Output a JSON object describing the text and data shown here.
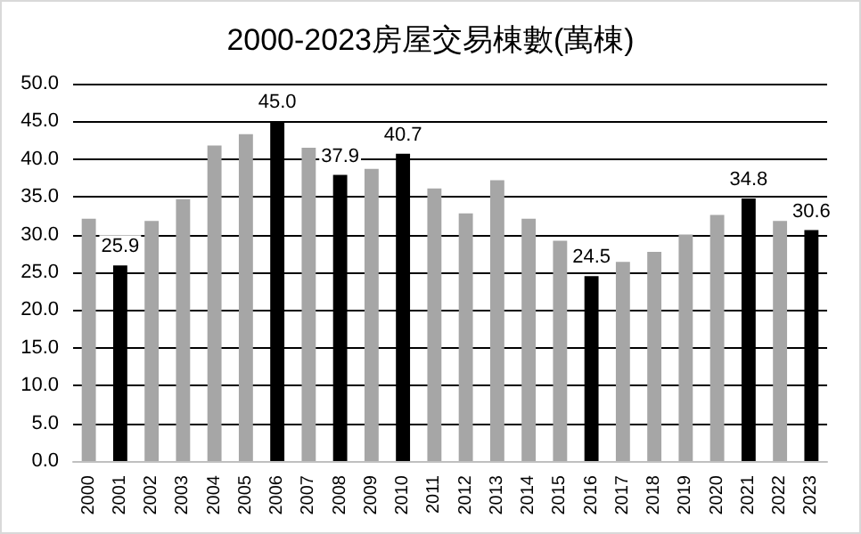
{
  "chart_data": {
    "type": "bar",
    "title": "2000-2023房屋交易棟數(萬棟)",
    "categories": [
      "2000",
      "2001",
      "2002",
      "2003",
      "2004",
      "2005",
      "2006",
      "2007",
      "2008",
      "2009",
      "2010",
      "2011",
      "2012",
      "2013",
      "2014",
      "2015",
      "2016",
      "2017",
      "2018",
      "2019",
      "2020",
      "2021",
      "2022",
      "2023"
    ],
    "values": [
      32.1,
      25.9,
      31.8,
      34.7,
      41.8,
      43.3,
      45.0,
      41.5,
      37.9,
      38.7,
      40.7,
      36.1,
      32.8,
      37.2,
      32.1,
      29.2,
      24.5,
      26.4,
      27.7,
      30.0,
      32.6,
      34.8,
      31.8,
      30.6
    ],
    "colors": [
      "#a6a6a6",
      "#000000",
      "#a6a6a6",
      "#a6a6a6",
      "#a6a6a6",
      "#a6a6a6",
      "#000000",
      "#a6a6a6",
      "#000000",
      "#a6a6a6",
      "#000000",
      "#a6a6a6",
      "#a6a6a6",
      "#a6a6a6",
      "#a6a6a6",
      "#a6a6a6",
      "#000000",
      "#a6a6a6",
      "#a6a6a6",
      "#a6a6a6",
      "#a6a6a6",
      "#000000",
      "#a6a6a6",
      "#000000"
    ],
    "value_labels": [
      null,
      "25.9",
      null,
      null,
      null,
      null,
      "45.0",
      null,
      "37.9",
      null,
      "40.7",
      null,
      null,
      null,
      null,
      null,
      "24.5",
      null,
      null,
      null,
      null,
      "34.8",
      null,
      "30.6"
    ],
    "ylim": [
      0,
      50
    ],
    "yticks": [
      {
        "value": 0,
        "label": "0.0"
      },
      {
        "value": 5,
        "label": "5.0"
      },
      {
        "value": 10,
        "label": "10.0"
      },
      {
        "value": 15,
        "label": "15.0"
      },
      {
        "value": 20,
        "label": "20.0"
      },
      {
        "value": 25,
        "label": "25.0"
      },
      {
        "value": 30,
        "label": "30.0"
      },
      {
        "value": 35,
        "label": "35.0"
      },
      {
        "value": 40,
        "label": "40.0"
      },
      {
        "value": 45,
        "label": "45.0"
      },
      {
        "value": 50,
        "label": "50.0"
      }
    ],
    "grid": "y"
  }
}
